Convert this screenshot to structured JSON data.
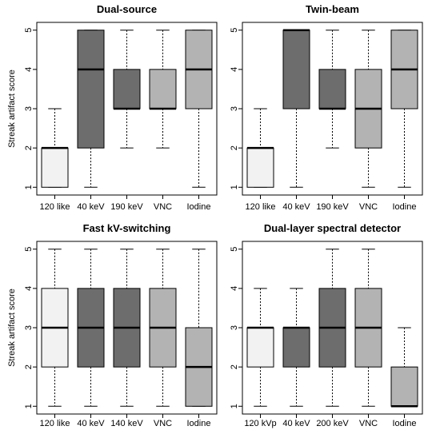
{
  "colors": {
    "light": "#f2f2f2",
    "dark": "#6d6d6d",
    "mid": "#b3b3b3",
    "median": "#000000",
    "border": "#000000"
  },
  "chart_data": [
    {
      "type": "boxplot",
      "title": "Dual-source",
      "ylabel": "Streak artifact score",
      "ylim": [
        1,
        5
      ],
      "yticks": [
        "1",
        "2",
        "3",
        "4",
        "5"
      ],
      "categories": [
        "120 like",
        "40 keV",
        "190 keV",
        "VNC",
        "Iodine"
      ],
      "fill_colors": [
        "light",
        "dark",
        "dark",
        "mid",
        "mid"
      ],
      "boxes": [
        {
          "min": 1,
          "q1": 1,
          "median": 2,
          "q3": 2,
          "max": 3
        },
        {
          "min": 1,
          "q1": 2,
          "median": 4,
          "q3": 5,
          "max": 5
        },
        {
          "min": 2,
          "q1": 3,
          "median": 3,
          "q3": 4,
          "max": 5
        },
        {
          "min": 2,
          "q1": 3,
          "median": 3,
          "q3": 4,
          "max": 5
        },
        {
          "min": 1,
          "q1": 3,
          "median": 4,
          "q3": 5,
          "max": 5
        }
      ]
    },
    {
      "type": "boxplot",
      "title": "Twin-beam",
      "ylabel": "",
      "ylim": [
        1,
        5
      ],
      "yticks": [
        "1",
        "2",
        "3",
        "4",
        "5"
      ],
      "categories": [
        "120 like",
        "40 keV",
        "190 keV",
        "VNC",
        "Iodine"
      ],
      "fill_colors": [
        "light",
        "dark",
        "dark",
        "mid",
        "mid"
      ],
      "boxes": [
        {
          "min": 1,
          "q1": 1,
          "median": 2,
          "q3": 2,
          "max": 3
        },
        {
          "min": 1,
          "q1": 3,
          "median": 5,
          "q3": 5,
          "max": 5
        },
        {
          "min": 2,
          "q1": 3,
          "median": 3,
          "q3": 4,
          "max": 5
        },
        {
          "min": 1,
          "q1": 2,
          "median": 3,
          "q3": 4,
          "max": 5
        },
        {
          "min": 1,
          "q1": 3,
          "median": 4,
          "q3": 5,
          "max": 5
        }
      ]
    },
    {
      "type": "boxplot",
      "title": "Fast kV-switching",
      "ylabel": "Streak artifact score",
      "ylim": [
        1,
        5
      ],
      "yticks": [
        "1",
        "2",
        "3",
        "4",
        "5"
      ],
      "categories": [
        "120 like",
        "40 keV",
        "140 keV",
        "VNC",
        "Iodine"
      ],
      "fill_colors": [
        "light",
        "dark",
        "dark",
        "mid",
        "mid"
      ],
      "boxes": [
        {
          "min": 1,
          "q1": 2,
          "median": 3,
          "q3": 4,
          "max": 5
        },
        {
          "min": 1,
          "q1": 2,
          "median": 3,
          "q3": 4,
          "max": 5
        },
        {
          "min": 1,
          "q1": 2,
          "median": 3,
          "q3": 4,
          "max": 5
        },
        {
          "min": 1,
          "q1": 2,
          "median": 3,
          "q3": 4,
          "max": 5
        },
        {
          "min": 1,
          "q1": 1,
          "median": 2,
          "q3": 3,
          "max": 5
        }
      ]
    },
    {
      "type": "boxplot",
      "title": "Dual-layer spectral detector",
      "ylabel": "",
      "ylim": [
        1,
        5
      ],
      "yticks": [
        "1",
        "2",
        "3",
        "4",
        "5"
      ],
      "categories": [
        "120 kVp",
        "40 keV",
        "200 keV",
        "VNC",
        "Iodine"
      ],
      "fill_colors": [
        "light",
        "dark",
        "dark",
        "mid",
        "mid"
      ],
      "boxes": [
        {
          "min": 1,
          "q1": 2,
          "median": 3,
          "q3": 3,
          "max": 4
        },
        {
          "min": 1,
          "q1": 2,
          "median": 3,
          "q3": 3,
          "max": 4
        },
        {
          "min": 1,
          "q1": 2,
          "median": 3,
          "q3": 4,
          "max": 5
        },
        {
          "min": 1,
          "q1": 2,
          "median": 3,
          "q3": 4,
          "max": 5
        },
        {
          "min": 1,
          "q1": 1,
          "median": 1,
          "q3": 2,
          "max": 3
        }
      ]
    }
  ]
}
